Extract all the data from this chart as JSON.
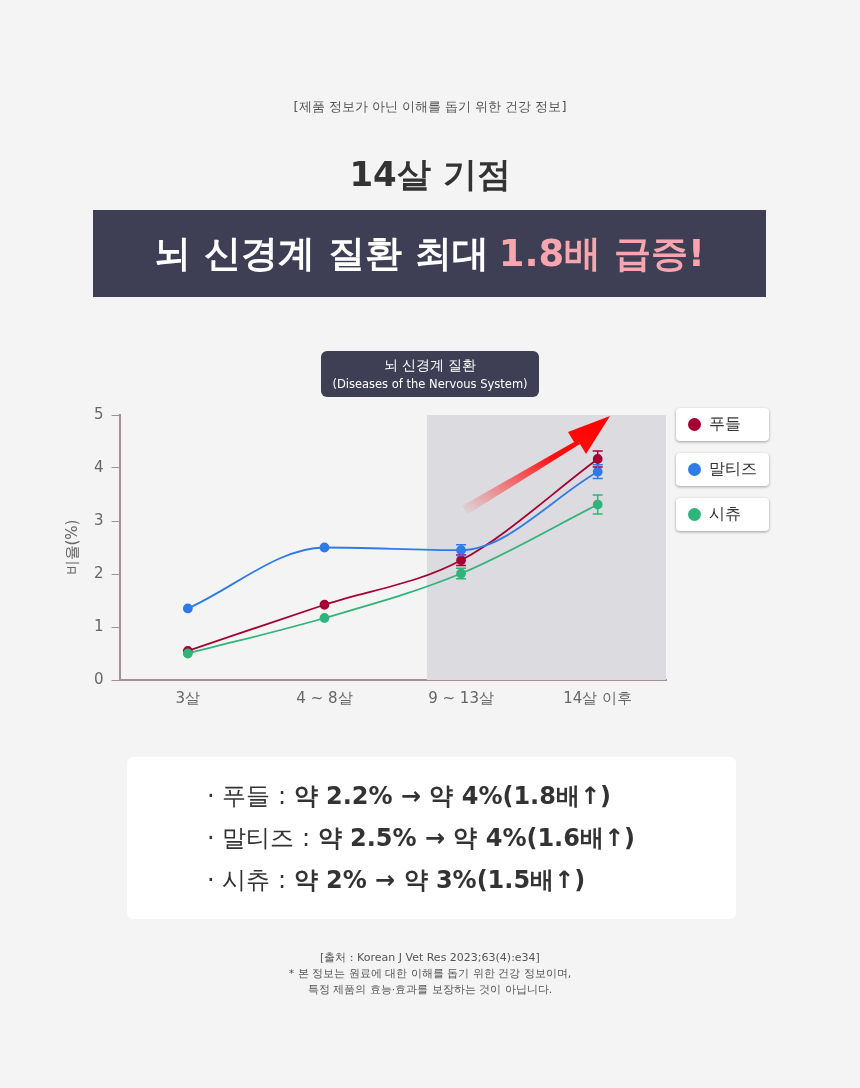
{
  "chart_data": {
    "type": "line",
    "title": "14살 기점",
    "subtitle": "뇌 신경계 질환 최대 1.8배 급증!",
    "ylabel": "비율(%)",
    "categories": [
      "3살",
      "4 ~ 8살",
      "9 ~ 13살",
      "14살 이후"
    ],
    "series": [
      {
        "name": "푸들",
        "color": "#a50034",
        "values": [
          0.55,
          1.42,
          2.26,
          4.17
        ],
        "errors": [
          null,
          null,
          0.1,
          0.15
        ]
      },
      {
        "name": "말티즈",
        "color": "#2f7be8",
        "values": [
          1.35,
          2.5,
          2.45,
          3.93
        ],
        "errors": [
          null,
          null,
          0.1,
          0.13
        ]
      },
      {
        "name": "시츄",
        "color": "#2fb47a",
        "values": [
          0.5,
          1.17,
          2.01,
          3.31
        ],
        "errors": [
          null,
          null,
          0.1,
          0.18
        ]
      }
    ],
    "ylim": [
      0,
      5
    ],
    "yticks": [
      0,
      1,
      2,
      3,
      4,
      5
    ],
    "grid": false,
    "legend": "right",
    "marker": "circle",
    "line_style": "solid",
    "bands": [
      {
        "axis": "x",
        "from": "9 ~ 13살",
        "to": "14살 이후",
        "color": "#dcdbe0"
      }
    ],
    "annotations": [
      "[제품 정보가 아닌 이해를 돕기 위한 건강 정보]",
      "뇌 신경계 질환\n(Diseases of the Nervous System)",
      "· 푸들 : 약 2.2% → 약 4%(1.8배↑)",
      "· 말티즈 : 약 2.5% → 약 4%(1.6배↑)",
      "· 시츄 : 약 2% → 약 3%(1.5배↑)",
      "[출처 : Korean J Vet Res 2023;63(4):e34]",
      "* 본 정보는 원료에 대한 이해를 돕기 위한 건강 정보이며,\n특정 제품의 효능·효과를 보장하는 것이 아닙니다."
    ]
  }
}
